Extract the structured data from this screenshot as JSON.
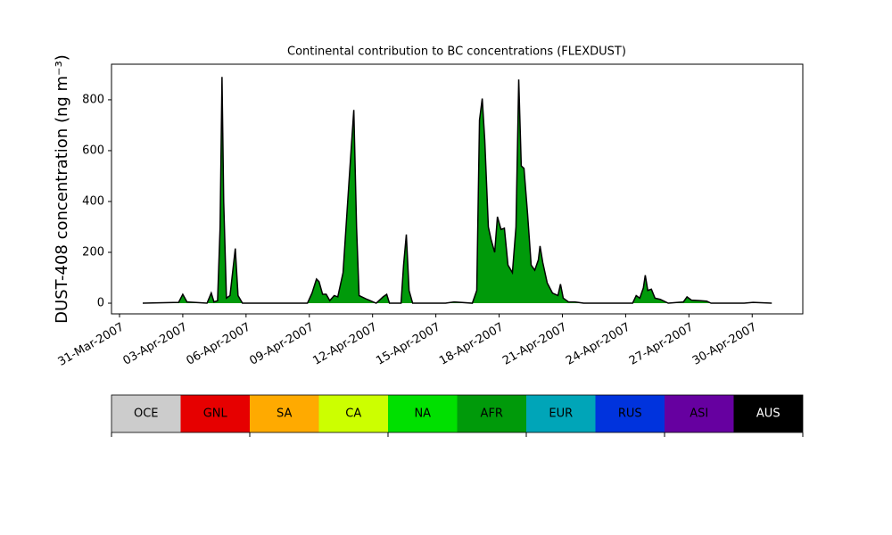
{
  "chart_data": {
    "type": "area",
    "title": "Continental contribution to BC concentrations (FLEXDUST)",
    "y_label": "DUST-408 concentration (ng m⁻³)",
    "x": [
      1.1,
      2.8,
      3.0,
      3.2,
      4.15,
      4.35,
      4.48,
      4.65,
      4.77,
      4.86,
      4.94,
      5.07,
      5.24,
      5.49,
      5.62,
      5.83,
      8.91,
      9.13,
      9.34,
      9.46,
      9.63,
      9.8,
      9.97,
      10.18,
      10.35,
      10.6,
      10.82,
      10.98,
      11.11,
      11.24,
      11.36,
      11.74,
      12.17,
      12.5,
      12.67,
      12.8,
      13.35,
      13.47,
      13.6,
      13.73,
      13.9,
      15.46,
      15.88,
      16.73,
      16.94,
      17.07,
      17.2,
      17.32,
      17.49,
      17.62,
      17.79,
      17.92,
      18.09,
      18.25,
      18.42,
      18.63,
      18.8,
      18.93,
      19.05,
      19.18,
      19.35,
      19.52,
      19.69,
      19.86,
      19.94,
      20.07,
      20.28,
      20.53,
      20.79,
      20.91,
      21.04,
      21.29,
      21.59,
      22.01,
      24.33,
      24.5,
      24.67,
      24.84,
      24.93,
      25.05,
      25.22,
      25.39,
      25.64,
      26.02,
      26.74,
      26.91,
      27.12,
      27.5,
      27.84,
      28.05,
      29.62,
      30.04,
      30.93
    ],
    "series": [
      {
        "name": "AFR",
        "color": "#009a0a",
        "values": [
          0,
          3,
          35,
          5,
          0,
          40,
          5,
          10,
          300,
          890,
          400,
          20,
          30,
          215,
          30,
          0,
          0,
          40,
          95,
          85,
          35,
          35,
          10,
          30,
          25,
          120,
          400,
          600,
          760,
          300,
          30,
          15,
          0,
          25,
          35,
          0,
          0,
          150,
          270,
          50,
          0,
          0,
          5,
          0,
          50,
          720,
          805,
          640,
          300,
          250,
          200,
          340,
          290,
          295,
          150,
          120,
          300,
          880,
          540,
          530,
          350,
          150,
          130,
          170,
          225,
          160,
          80,
          40,
          30,
          75,
          20,
          5,
          5,
          0,
          0,
          30,
          20,
          60,
          110,
          50,
          55,
          20,
          15,
          0,
          5,
          25,
          12,
          10,
          8,
          0,
          0,
          3,
          0
        ]
      }
    ],
    "xlim": [
      -0.38,
      32.4
    ],
    "xticks": [
      {
        "value": 0,
        "label": "31-Mar-2007"
      },
      {
        "value": 3,
        "label": "03-Apr-2007"
      },
      {
        "value": 6,
        "label": "06-Apr-2007"
      },
      {
        "value": 9,
        "label": "09-Apr-2007"
      },
      {
        "value": 12,
        "label": "12-Apr-2007"
      },
      {
        "value": 15,
        "label": "15-Apr-2007"
      },
      {
        "value": 18,
        "label": "18-Apr-2007"
      },
      {
        "value": 21,
        "label": "21-Apr-2007"
      },
      {
        "value": 24,
        "label": "24-Apr-2007"
      },
      {
        "value": 27,
        "label": "27-Apr-2007"
      },
      {
        "value": 30,
        "label": "30-Apr-2007"
      }
    ],
    "ylim": [
      -42,
      940
    ],
    "yticks": [
      0,
      200,
      400,
      600,
      800
    ],
    "colorbar": {
      "labels": [
        "OCE",
        "GNL",
        "SA",
        "CA",
        "NA",
        "AFR",
        "EUR",
        "RUS",
        "ASI",
        "AUS"
      ],
      "colors": [
        "#cccccc",
        "#e60000",
        "#ffaa00",
        "#ccff00",
        "#00e000",
        "#009a0a",
        "#00a5b8",
        "#0033dd",
        "#6600a0",
        "#000000"
      ]
    }
  }
}
